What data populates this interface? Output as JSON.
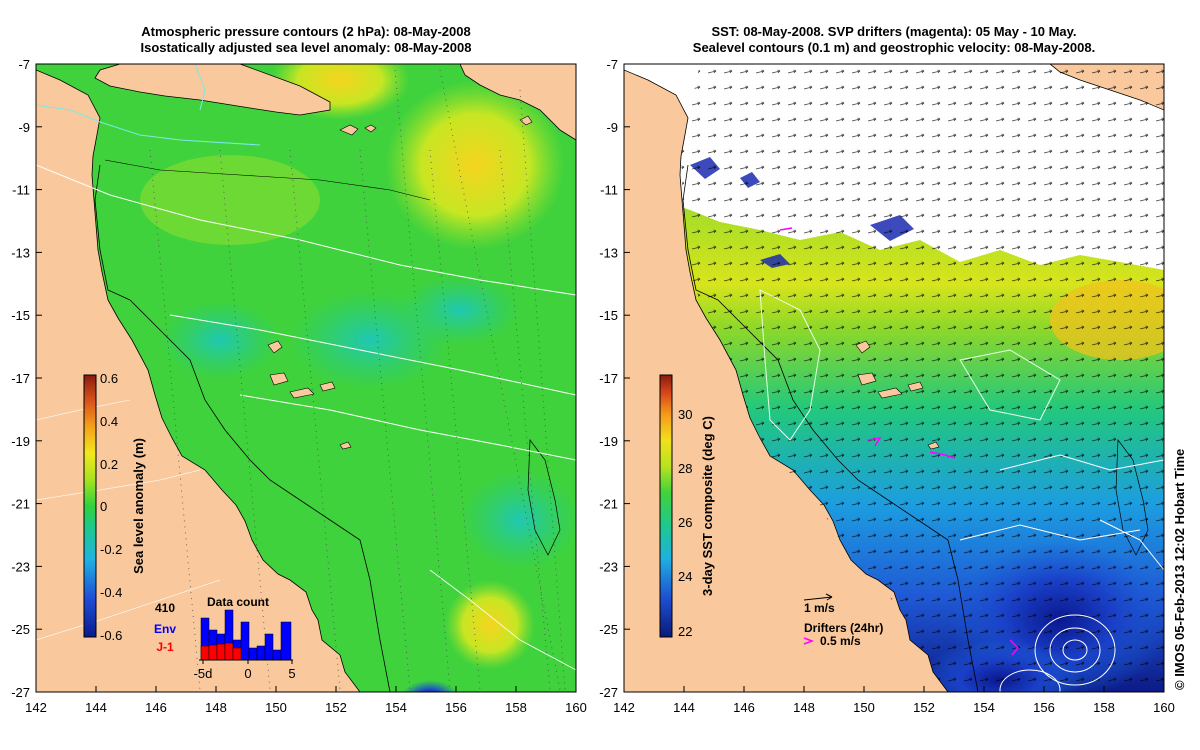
{
  "left_panel": {
    "title_line1": "Atmospheric pressure contours (2 hPa): 08-May-2008",
    "title_line2": "Isostatically adjusted sea level anomaly: 08-May-2008",
    "colorbar": {
      "label": "Sea level anomaly (m)",
      "ticks": [
        "0.6",
        "0.4",
        "0.2",
        "0",
        "-0.2",
        "-0.4",
        "-0.6"
      ]
    },
    "data_count": {
      "title": "Data count",
      "total": "410",
      "env_label": "Env",
      "j1_label": "J-1",
      "env_color": "#0000ff",
      "j1_color": "#ff0000",
      "axis_ticks": [
        "-5d",
        "0",
        "5"
      ]
    }
  },
  "right_panel": {
    "title_line1": "SST: 08-May-2008. SVP drifters (magenta): 05 May - 10 May.",
    "title_line2": "Sealevel contours (0.1 m) and geostrophic velocity: 08-May-2008.",
    "colorbar": {
      "label": "3-day SST composite (deg C)",
      "ticks": [
        "30",
        "28",
        "26",
        "24",
        "22"
      ]
    },
    "legend": {
      "velocity_scale": "1 m/s",
      "drifters_title": "Drifters (24hr)",
      "drifter_scale": "0.5 m/s",
      "drifter_color": "#ff00ff"
    }
  },
  "axes": {
    "lon_ticks": [
      "142",
      "144",
      "146",
      "148",
      "150",
      "152",
      "154",
      "156",
      "158",
      "160"
    ],
    "lat_ticks": [
      "-7",
      "-9",
      "-11",
      "-13",
      "-15",
      "-17",
      "-19",
      "-21",
      "-23",
      "-25",
      "-27"
    ]
  },
  "credit": "© IMOS 05-Feb-2013 12:02 Hobart Time",
  "colors": {
    "land": "#f9c89c",
    "sea_base": "#3fd23c"
  }
}
